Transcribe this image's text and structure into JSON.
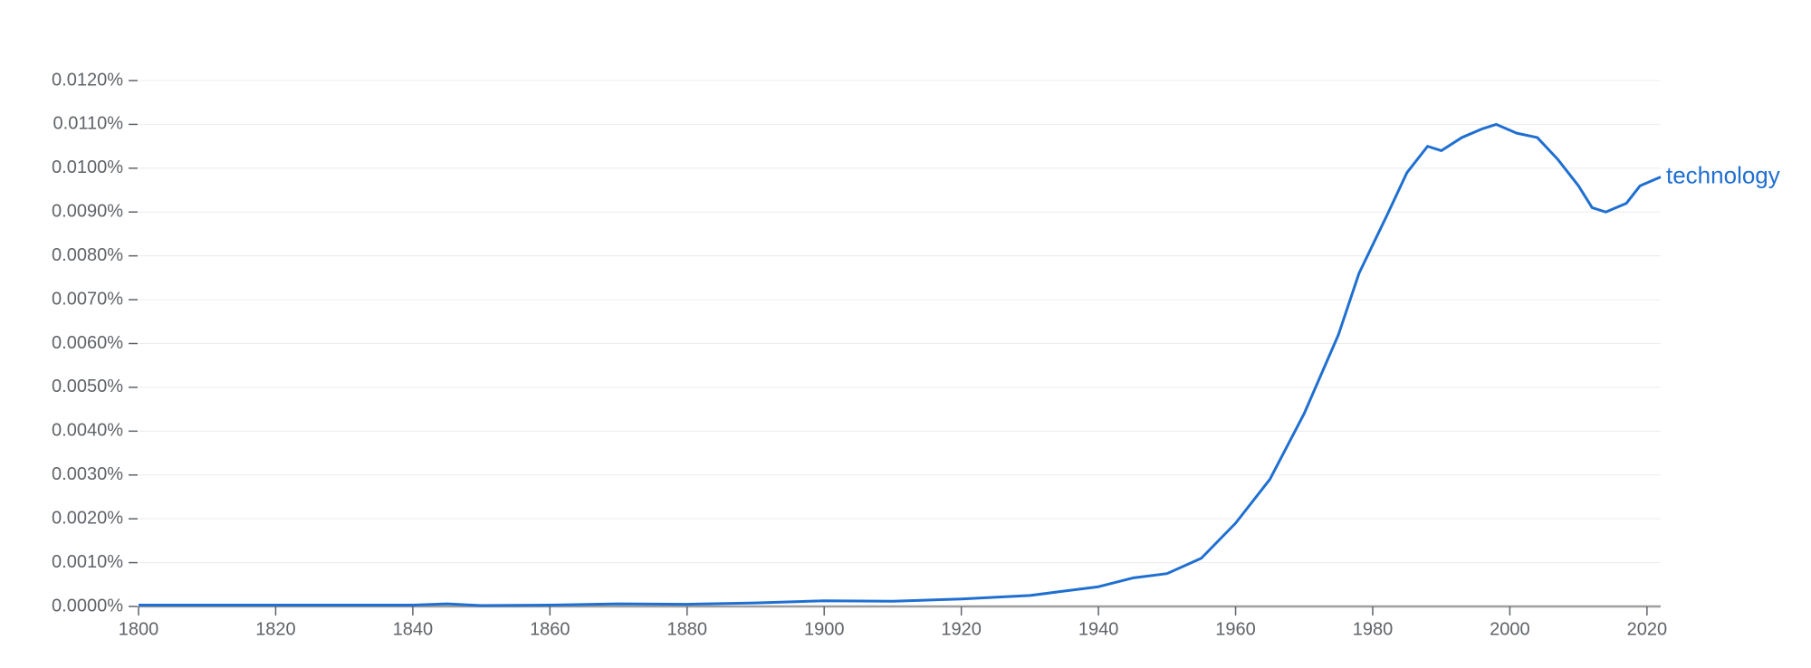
{
  "chart_data": {
    "type": "line",
    "x": [
      1800,
      1820,
      1840,
      1845,
      1850,
      1860,
      1870,
      1880,
      1890,
      1900,
      1910,
      1920,
      1930,
      1935,
      1940,
      1945,
      1950,
      1955,
      1960,
      1965,
      1970,
      1975,
      1978,
      1982,
      1985,
      1988,
      1990,
      1993,
      1996,
      1998,
      2001,
      2004,
      2007,
      2010,
      2012,
      2014,
      2017,
      2019,
      2022
    ],
    "series": [
      {
        "name": "technology",
        "color": "#1f6fd1",
        "values": [
          3e-05,
          3e-05,
          3e-05,
          6e-05,
          2e-05,
          3e-05,
          6e-05,
          5e-05,
          8e-05,
          0.00013,
          0.00012,
          0.00017,
          0.00025,
          0.00035,
          0.00045,
          0.00065,
          0.00075,
          0.0011,
          0.0019,
          0.0029,
          0.0044,
          0.0062,
          0.0076,
          0.0089,
          0.0099,
          0.0105,
          0.0104,
          0.0107,
          0.0109,
          0.011,
          0.0108,
          0.0107,
          0.0102,
          0.0096,
          0.0091,
          0.009,
          0.0092,
          0.0096,
          0.0098
        ]
      }
    ],
    "xlim": [
      1800,
      2022
    ],
    "xticks": [
      1800,
      1820,
      1840,
      1860,
      1880,
      1900,
      1920,
      1940,
      1960,
      1980,
      2000,
      2020
    ],
    "ylim": [
      0,
      0.012
    ],
    "yticks": [
      {
        "value": 0,
        "label": "0.0000%"
      },
      {
        "value": 0.001,
        "label": "0.0010%"
      },
      {
        "value": 0.002,
        "label": "0.0020%"
      },
      {
        "value": 0.003,
        "label": "0.0030%"
      },
      {
        "value": 0.004,
        "label": "0.0040%"
      },
      {
        "value": 0.005,
        "label": "0.0050%"
      },
      {
        "value": 0.006,
        "label": "0.0060%"
      },
      {
        "value": 0.007,
        "label": "0.0070%"
      },
      {
        "value": 0.008,
        "label": "0.0080%"
      },
      {
        "value": 0.009,
        "label": "0.0090%"
      },
      {
        "value": 0.01,
        "label": "0.0100%"
      },
      {
        "value": 0.011,
        "label": "0.0110%"
      },
      {
        "value": 0.012,
        "label": "0.0120%"
      }
    ],
    "grid": true
  }
}
